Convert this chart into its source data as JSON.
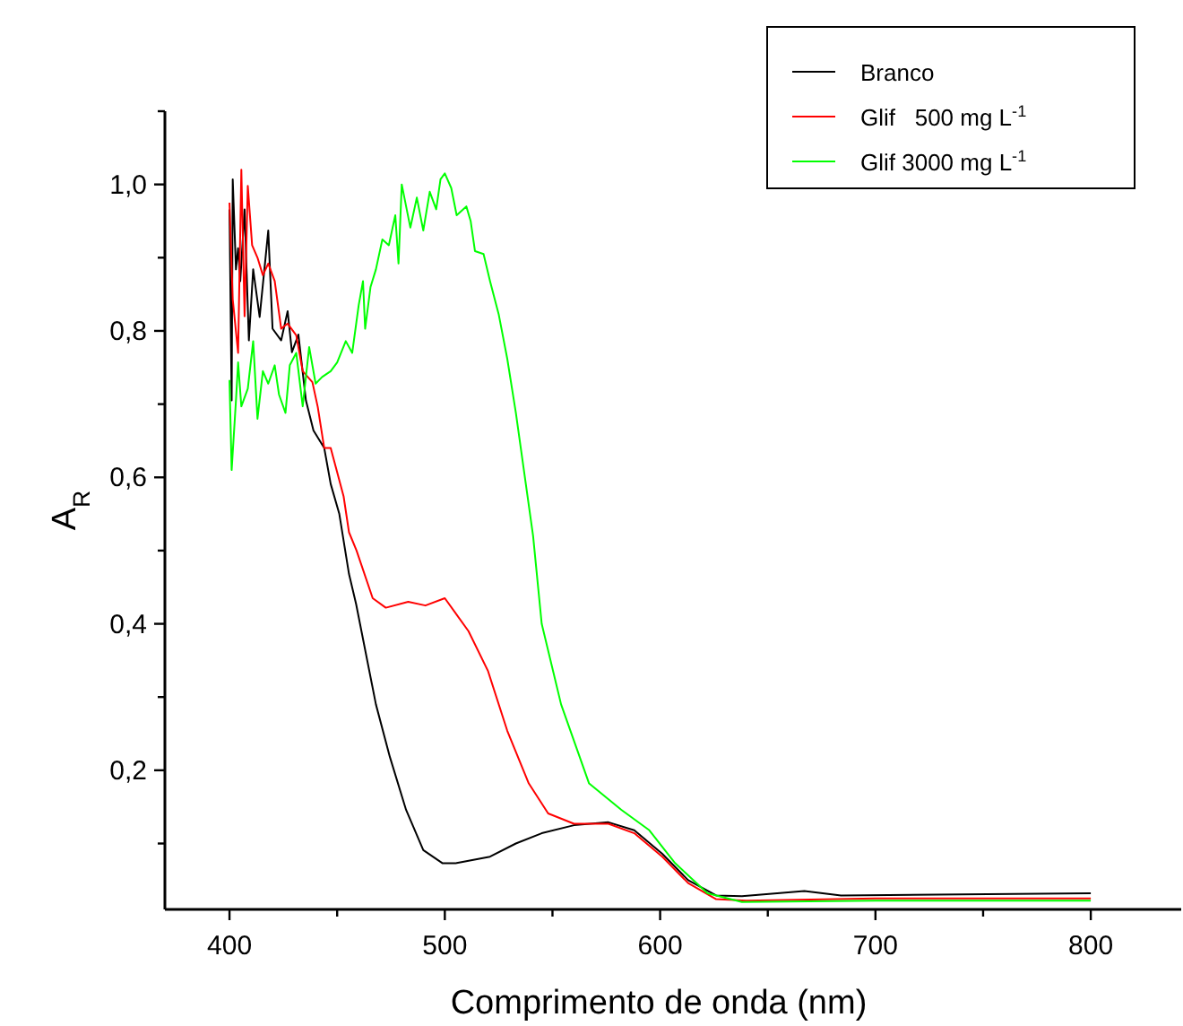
{
  "chart_data": {
    "type": "line",
    "xlabel": "Comprimento de onda (nm)",
    "ylabel": "A$_{R}$",
    "xlim": [
      370,
      842
    ],
    "ylim": [
      0.01,
      1.1
    ],
    "xticks": [
      400,
      {
        "value": 450,
        "label": null
      },
      500,
      {
        "value": 550,
        "label": null
      },
      600,
      {
        "value": 650,
        "label": null
      },
      700,
      {
        "value": 750,
        "label": null
      },
      800
    ],
    "yticks": [
      {
        "value": 0.1,
        "label": null
      },
      {
        "value": 0.2,
        "label": "0,2"
      },
      {
        "value": 0.3,
        "label": null
      },
      {
        "value": 0.4,
        "label": "0,4"
      },
      {
        "value": 0.5,
        "label": null
      },
      {
        "value": 0.6,
        "label": "0,6"
      },
      {
        "value": 0.7,
        "label": null
      },
      {
        "value": 0.8,
        "label": "0,8"
      },
      {
        "value": 0.9,
        "label": null
      },
      {
        "value": 1.0,
        "label": "1,0"
      },
      {
        "value": 1.1,
        "label": null
      }
    ],
    "legend": "top right",
    "grid": false,
    "marker": "none",
    "line_style": "solid",
    "series": [
      {
        "name": "Branco",
        "color": "#000000",
        "x": [
          400,
          401,
          401.5,
          403,
          404,
          405,
          407,
          409,
          411,
          414,
          418,
          420,
          424,
          427,
          429,
          432,
          435.5,
          439,
          444,
          447,
          451,
          455.5,
          458.8,
          468,
          474.5,
          482,
          490,
          499,
          505,
          521,
          533,
          545,
          560,
          576,
          588,
          601,
          613,
          626,
          638,
          667,
          684,
          800
        ],
        "values": [
          0.966,
          0.705,
          1.007,
          0.884,
          0.913,
          0.868,
          0.966,
          0.787,
          0.884,
          0.819,
          0.937,
          0.803,
          0.787,
          0.827,
          0.771,
          0.795,
          0.705,
          0.664,
          0.64,
          0.591,
          0.55,
          0.468,
          0.427,
          0.29,
          0.218,
          0.146,
          0.091,
          0.073,
          0.073,
          0.082,
          0.1,
          0.114,
          0.125,
          0.129,
          0.118,
          0.086,
          0.05,
          0.029,
          0.028,
          0.035,
          0.029,
          0.032
        ]
      },
      {
        "name": "Glif   500 mg L$^{-1}$",
        "color": "#ff0000",
        "x": [
          400,
          401.5,
          404,
          405.5,
          407,
          408.5,
          410.5,
          413,
          415.5,
          418,
          421,
          424,
          427,
          431,
          434,
          438.5,
          441,
          444,
          447,
          450,
          453,
          455.5,
          459,
          466.5,
          472.6,
          483,
          491,
          500,
          511,
          520,
          529,
          539,
          548,
          560,
          576,
          588,
          601,
          613,
          626,
          640,
          700,
          800
        ],
        "values": [
          0.975,
          0.843,
          0.77,
          1.02,
          0.82,
          0.998,
          0.917,
          0.9,
          0.876,
          0.892,
          0.868,
          0.803,
          0.81,
          0.794,
          0.745,
          0.73,
          0.696,
          0.64,
          0.64,
          0.607,
          0.574,
          0.525,
          0.5,
          0.435,
          0.422,
          0.43,
          0.425,
          0.435,
          0.39,
          0.336,
          0.254,
          0.182,
          0.141,
          0.127,
          0.127,
          0.114,
          0.082,
          0.046,
          0.024,
          0.022,
          0.025,
          0.025
        ]
      },
      {
        "name": "Glif 3000 mg L$^{-1}$",
        "color": "#00ff00",
        "x": [
          400,
          401,
          403,
          404,
          405.5,
          408.5,
          411,
          413,
          415.5,
          418,
          421,
          423,
          426,
          428,
          431,
          434,
          437,
          440,
          443,
          447,
          450,
          454,
          457,
          460,
          462,
          463,
          465.5,
          468,
          471,
          474,
          477,
          478.5,
          480,
          484,
          487,
          490,
          493,
          496,
          498,
          500,
          503,
          505.5,
          510,
          512,
          514,
          518,
          521,
          525,
          529,
          533,
          541,
          545,
          554,
          567,
          582,
          595,
          607,
          622,
          638,
          700,
          800
        ],
        "values": [
          0.733,
          0.61,
          0.705,
          0.757,
          0.697,
          0.721,
          0.786,
          0.68,
          0.745,
          0.728,
          0.753,
          0.713,
          0.688,
          0.753,
          0.77,
          0.697,
          0.778,
          0.728,
          0.737,
          0.745,
          0.757,
          0.786,
          0.77,
          0.835,
          0.868,
          0.803,
          0.86,
          0.884,
          0.925,
          0.917,
          0.958,
          0.892,
          1.0,
          0.941,
          0.982,
          0.937,
          0.99,
          0.966,
          1.007,
          1.015,
          0.995,
          0.958,
          0.97,
          0.95,
          0.909,
          0.905,
          0.868,
          0.823,
          0.762,
          0.688,
          0.52,
          0.4,
          0.29,
          0.182,
          0.146,
          0.118,
          0.073,
          0.032,
          0.02,
          0.022,
          0.022
        ]
      }
    ]
  }
}
